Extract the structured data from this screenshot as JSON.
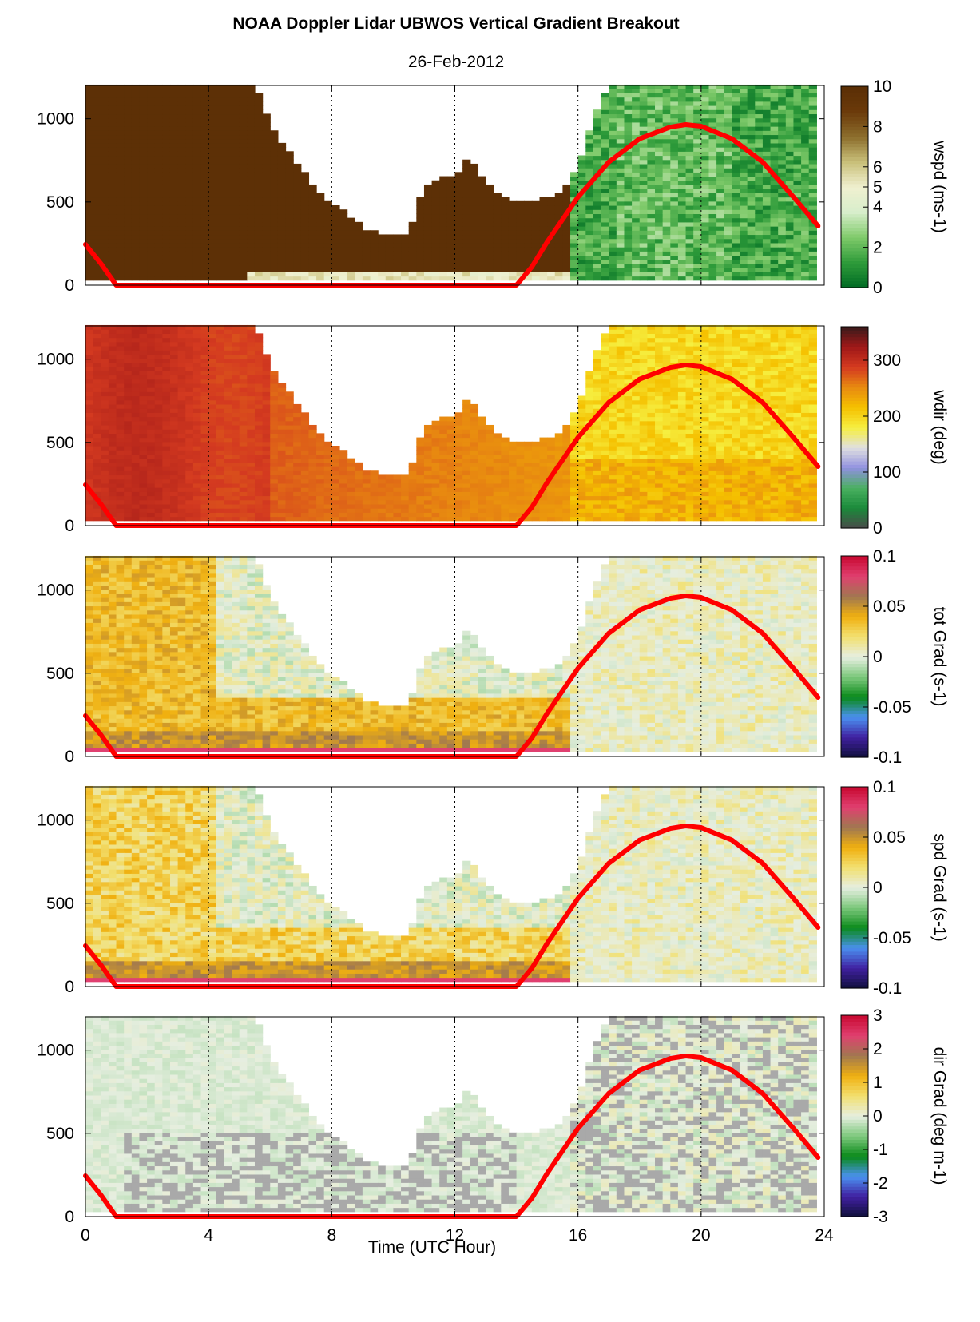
{
  "title": "NOAA Doppler Lidar  UBWOS  Vertical Gradient Breakout",
  "subtitle": "26-Feb-2012",
  "xlabel": "Time (UTC Hour)",
  "chart_data": [
    {
      "type": "heatmap",
      "x_range": [
        0,
        24
      ],
      "x_ticks": [
        0,
        4,
        8,
        12,
        16,
        20,
        24
      ],
      "y_range": [
        0,
        1200
      ],
      "y_ticks": [
        0,
        500,
        1000
      ],
      "x_grid": "dotted at 4, 8, 12, 16, 20",
      "colorbar_label": "wspd (ms-1)",
      "colorbar_range": [
        0,
        10
      ],
      "colorbar_ticks": [
        "0",
        "2",
        "4",
        "5",
        "6",
        "8",
        "10"
      ],
      "colormap": [
        "#006b24",
        "#2e9b3a",
        "#7fca6a",
        "#d7eecb",
        "#f0f0d0",
        "#c9c07a",
        "#8c6d2c",
        "#6b3a0a",
        "#5a2e05"
      ],
      "overlay_line_color": "#ff0000"
    },
    {
      "type": "heatmap",
      "x_range": [
        0,
        24
      ],
      "x_ticks": [
        0,
        4,
        8,
        12,
        16,
        20,
        24
      ],
      "y_range": [
        0,
        1200
      ],
      "y_ticks": [
        0,
        500,
        1000
      ],
      "colorbar_label": "wdir (deg)",
      "colorbar_range": [
        0,
        360
      ],
      "colorbar_ticks": [
        "0",
        "100",
        "200",
        "300"
      ],
      "colormap": [
        "#4a4a4a",
        "#1a8a3a",
        "#4ab060",
        "#9090e0",
        "#e0e0e0",
        "#f6ef40",
        "#f5c000",
        "#e88a10",
        "#d43a20",
        "#a01818",
        "#3a1a1a"
      ]
    },
    {
      "type": "heatmap",
      "x_range": [
        0,
        24
      ],
      "x_ticks": [
        0,
        4,
        8,
        12,
        16,
        20,
        24
      ],
      "y_range": [
        0,
        1200
      ],
      "y_ticks": [
        0,
        500,
        1000
      ],
      "colorbar_label": "tot Grad (s-1)",
      "colorbar_range": [
        -0.1,
        0.1
      ],
      "colorbar_ticks": [
        "-0.1",
        "-0.05",
        "0",
        "0.05",
        "0.1"
      ],
      "colormap": [
        "#10103a",
        "#4020a0",
        "#4a90f0",
        "#0a8a1a",
        "#7cc87c",
        "#e6eee0",
        "#f2e070",
        "#f0b010",
        "#a07850",
        "#e04070",
        "#c80830"
      ]
    },
    {
      "type": "heatmap",
      "x_range": [
        0,
        24
      ],
      "x_ticks": [
        0,
        4,
        8,
        12,
        16,
        20,
        24
      ],
      "y_range": [
        0,
        1200
      ],
      "y_ticks": [
        0,
        500,
        1000
      ],
      "colorbar_label": "spd Grad (s-1)",
      "colorbar_range": [
        -0.1,
        0.1
      ],
      "colorbar_ticks": [
        "-0.1",
        "-0.05",
        "0",
        "0.05",
        "0.1"
      ],
      "colormap": [
        "#10103a",
        "#4020a0",
        "#4a90f0",
        "#0a8a1a",
        "#7cc87c",
        "#e6eee0",
        "#f2e070",
        "#f0b010",
        "#a07850",
        "#e04070",
        "#c80830"
      ]
    },
    {
      "type": "heatmap",
      "x_range": [
        0,
        24
      ],
      "x_ticks": [
        0,
        4,
        8,
        12,
        16,
        20,
        24
      ],
      "y_range": [
        0,
        1200
      ],
      "y_ticks": [
        0,
        500,
        1000
      ],
      "colorbar_label": "dir Grad (deg m-1)",
      "colorbar_range": [
        -3,
        3
      ],
      "colorbar_ticks": [
        "-3",
        "-2",
        "-1",
        "0",
        "1",
        "2",
        "3"
      ],
      "colormap": [
        "#10103a",
        "#4020a0",
        "#4a90f0",
        "#0a8a1a",
        "#7cc87c",
        "#e6eee0",
        "#f2e070",
        "#f0b010",
        "#a07850",
        "#e04070",
        "#c80830"
      ]
    }
  ],
  "overlay_curve": {
    "color": "#ff0000",
    "x": [
      0,
      0.5,
      1.0,
      14.0,
      14.5,
      15,
      16,
      17,
      18,
      19,
      19.5,
      20,
      21,
      22,
      23,
      23.8
    ],
    "y": [
      245,
      130,
      0,
      0,
      110,
      260,
      530,
      740,
      880,
      950,
      965,
      955,
      880,
      740,
      530,
      355
    ]
  },
  "ceiling_profile": {
    "x": [
      0,
      0.5,
      1,
      1.5,
      2,
      2.5,
      3,
      3.5,
      4,
      4.5,
      5,
      5.5,
      6,
      6.5,
      7,
      7.5,
      8,
      8.5,
      9,
      9.5,
      10,
      10.5,
      11,
      11.5,
      12,
      12.5,
      13,
      13.5,
      14,
      14.5,
      15,
      15.5,
      16,
      16.5,
      17,
      18,
      19,
      20,
      21,
      22,
      23,
      24
    ],
    "y": [
      1200,
      1200,
      1200,
      1200,
      1200,
      1200,
      1200,
      1200,
      1200,
      1200,
      1200,
      1200,
      950,
      820,
      700,
      560,
      470,
      420,
      340,
      300,
      290,
      300,
      580,
      640,
      650,
      760,
      620,
      520,
      500,
      500,
      510,
      560,
      700,
      1000,
      1200,
      1200,
      1200,
      1200,
      1200,
      1200,
      1200,
      1200
    ]
  }
}
